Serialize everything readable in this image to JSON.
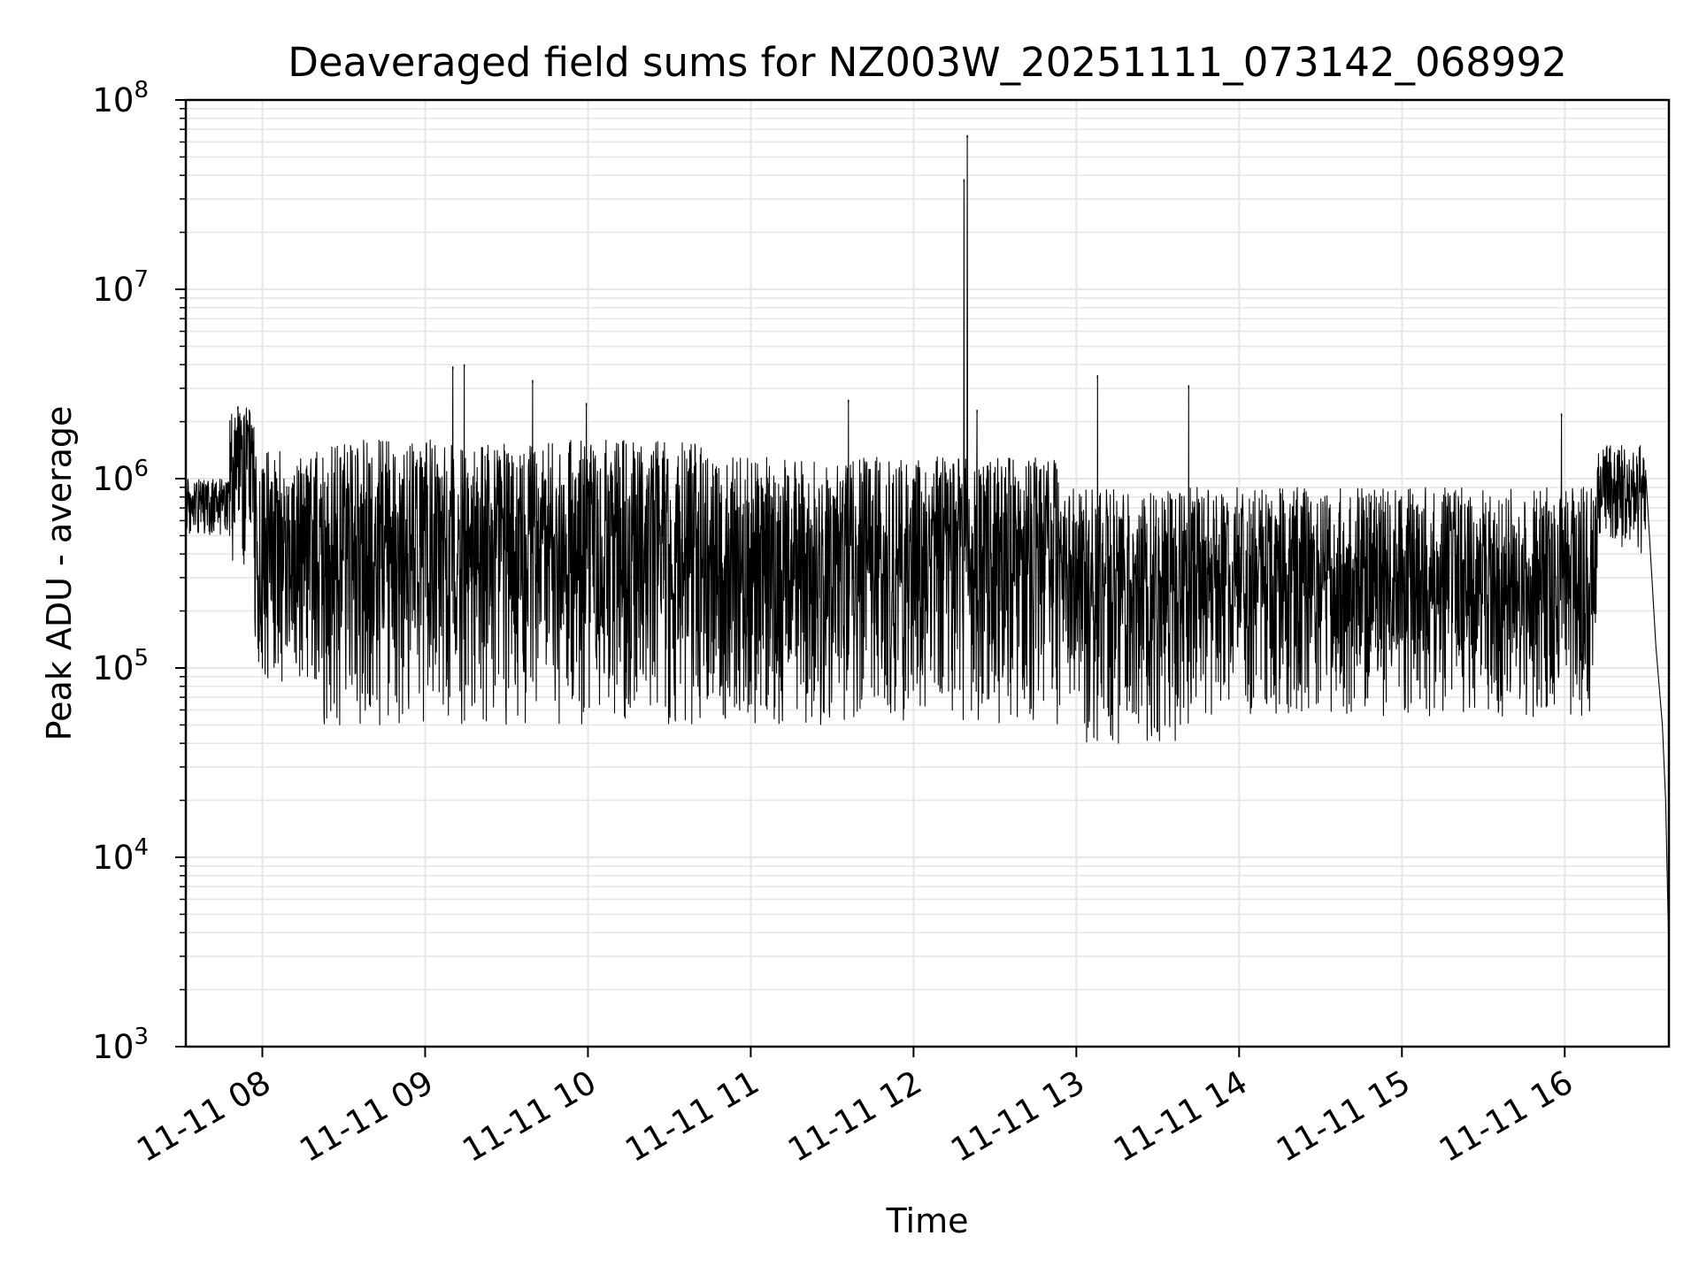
{
  "chart_data": {
    "type": "line",
    "title": "Deaveraged field sums for NZ003W_20251111_073142_068992",
    "xlabel": "Time",
    "ylabel": "Peak ADU - average",
    "yscale": "log",
    "ylim": [
      1000,
      100000000
    ],
    "xlim_hours": [
      7.53,
      16.64
    ],
    "x_ticks": [
      {
        "label": "11-11 08",
        "hour": 8
      },
      {
        "label": "11-11 09",
        "hour": 9
      },
      {
        "label": "11-11 10",
        "hour": 10
      },
      {
        "label": "11-11 11",
        "hour": 11
      },
      {
        "label": "11-11 12",
        "hour": 12
      },
      {
        "label": "11-11 13",
        "hour": 13
      },
      {
        "label": "11-11 14",
        "hour": 14
      },
      {
        "label": "11-11 15",
        "hour": 15
      },
      {
        "label": "11-11 16",
        "hour": 16
      }
    ],
    "y_ticks": [
      {
        "base": "10",
        "exp": "3",
        "value": 1000
      },
      {
        "base": "10",
        "exp": "4",
        "value": 10000
      },
      {
        "base": "10",
        "exp": "5",
        "value": 100000
      },
      {
        "base": "10",
        "exp": "6",
        "value": 1000000
      },
      {
        "base": "10",
        "exp": "7",
        "value": 10000000
      },
      {
        "base": "10",
        "exp": "8",
        "value": 100000000
      }
    ],
    "grid": true,
    "line_color": "#000000",
    "grid_color": "#e6e6e6",
    "series": [
      {
        "name": "Deaveraged field sum",
        "envelope": [
          {
            "x": [
              7.53,
              7.8
            ],
            "low": 500000,
            "high": 1000000
          },
          {
            "x": [
              7.8,
              7.95
            ],
            "low": 300000,
            "high": 2400000
          },
          {
            "x": [
              7.95,
              8.3
            ],
            "low": 80000,
            "high": 1400000
          },
          {
            "x": [
              8.3,
              10.7
            ],
            "low": 50000,
            "high": 1600000
          },
          {
            "x": [
              10.7,
              12.9
            ],
            "low": 50000,
            "high": 1300000
          },
          {
            "x": [
              12.9,
              13.7
            ],
            "low": 40000,
            "high": 900000
          },
          {
            "x": [
              13.7,
              16.2
            ],
            "low": 55000,
            "high": 900000
          },
          {
            "x": [
              16.2,
              16.5
            ],
            "low": 400000,
            "high": 1500000
          }
        ],
        "spikes": [
          {
            "x": 7.85,
            "y": 2400000
          },
          {
            "x": 7.92,
            "y": 2300000
          },
          {
            "x": 9.17,
            "y": 3900000
          },
          {
            "x": 9.24,
            "y": 4000000
          },
          {
            "x": 9.66,
            "y": 3300000
          },
          {
            "x": 9.99,
            "y": 2500000
          },
          {
            "x": 11.6,
            "y": 2600000
          },
          {
            "x": 12.31,
            "y": 38000000
          },
          {
            "x": 12.33,
            "y": 65000000
          },
          {
            "x": 12.39,
            "y": 2300000
          },
          {
            "x": 13.13,
            "y": 3500000
          },
          {
            "x": 13.69,
            "y": 3100000
          },
          {
            "x": 15.98,
            "y": 2200000
          }
        ],
        "tail": [
          {
            "x": 16.5,
            "y": 1000000
          },
          {
            "x": 16.56,
            "y": 130000
          },
          {
            "x": 16.6,
            "y": 50000
          },
          {
            "x": 16.62,
            "y": 20000
          },
          {
            "x": 16.64,
            "y": 3000
          }
        ]
      }
    ]
  }
}
